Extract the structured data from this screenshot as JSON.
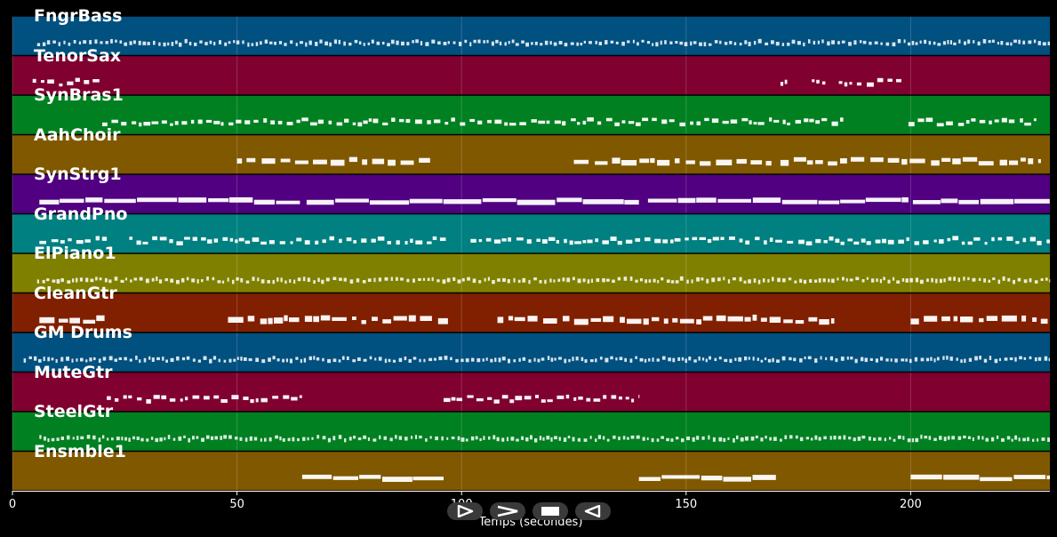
{
  "chart_data": {
    "type": "piano-roll",
    "xlabel": "Temps (secondes)",
    "xlim": [
      0,
      231
    ],
    "xticks": [
      0,
      50,
      100,
      150,
      200
    ],
    "xtick_labels": [
      "0",
      "50",
      "100",
      "150",
      "200"
    ],
    "grid": true,
    "tracks": [
      {
        "name": "FngrBass",
        "color": "#005080",
        "segments": [
          [
            5.5,
            231
          ]
        ],
        "style": "dense"
      },
      {
        "name": "TenorSax",
        "color": "#800030",
        "segments": [
          [
            4.5,
            19.5
          ],
          [
            171,
            172.5
          ],
          [
            178,
            181
          ],
          [
            184,
            199
          ]
        ],
        "style": "notes"
      },
      {
        "name": "SynBras1",
        "color": "#008020",
        "segments": [
          [
            20,
            185
          ],
          [
            199.5,
            228
          ]
        ],
        "style": "notes"
      },
      {
        "name": "AahChoir",
        "color": "#805800",
        "segments": [
          [
            50,
            93
          ],
          [
            125,
            169
          ],
          [
            171,
            229
          ]
        ],
        "style": "thick"
      },
      {
        "name": "SynStrg1",
        "color": "#500080",
        "segments": [
          [
            6,
            64
          ],
          [
            65.5,
            139.5
          ],
          [
            141.5,
            199.5
          ],
          [
            200.5,
            231
          ]
        ],
        "style": "solid"
      },
      {
        "name": "GrandPno",
        "color": "#008080",
        "segments": [
          [
            6,
            21
          ],
          [
            26,
            97
          ],
          [
            102,
            231
          ]
        ],
        "style": "notes"
      },
      {
        "name": "ElPiano1",
        "color": "#808000",
        "segments": [
          [
            5.5,
            231
          ]
        ],
        "style": "dense"
      },
      {
        "name": "CleanGtr",
        "color": "#802000",
        "segments": [
          [
            6,
            20.5
          ],
          [
            48,
            97
          ],
          [
            108,
            183
          ],
          [
            200,
            231
          ]
        ],
        "style": "thick"
      },
      {
        "name": "GM Drums",
        "color": "#005080",
        "segments": [
          [
            2.5,
            231
          ]
        ],
        "style": "dense"
      },
      {
        "name": "MuteGtr",
        "color": "#800030",
        "segments": [
          [
            21,
            64.5
          ],
          [
            96,
            139.5
          ]
        ],
        "style": "notes"
      },
      {
        "name": "SteelGtr",
        "color": "#008020",
        "segments": [
          [
            6,
            231
          ]
        ],
        "style": "dense"
      },
      {
        "name": "Ensmble1",
        "color": "#805800",
        "segments": [
          [
            64.5,
            96
          ],
          [
            139.5,
            170
          ],
          [
            200,
            231
          ]
        ],
        "style": "solid"
      }
    ]
  },
  "controls": {
    "play_icon": "play-outline-icon",
    "forward_icon": "forward-chevron-icon",
    "stop_icon": "stop-icon",
    "back_icon": "back-triangle-icon"
  }
}
